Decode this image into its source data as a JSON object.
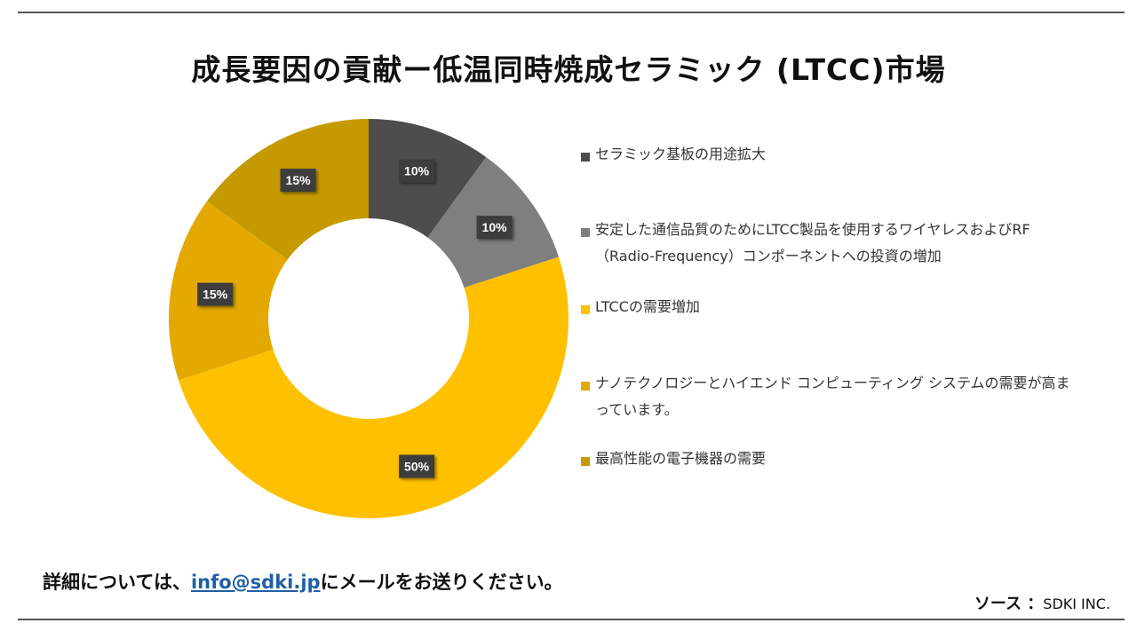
{
  "title": "成長要因の貢献ー低温同時焼成セラミック (LTCC)市場",
  "chart_data": {
    "type": "pie",
    "variant": "donut",
    "title": "成長要因の貢献ー低温同時焼成セラミック (LTCC)市場",
    "categories": [
      "セラミック基板の用途拡大",
      "安定した通信品質のためにLTCC製品を使用するワイヤレスおよびRF（Radio-Frequency）コンポーネントへの投資の増加",
      "LTCCの需要増加",
      "ナノテクノロジーとハイエンド コンピューティング システムの需要が高まっています。",
      "最高性能の電子機器の需要"
    ],
    "values": [
      10,
      10,
      50,
      15,
      15
    ],
    "labels": [
      "10%",
      "10%",
      "50%",
      "15%",
      "15%"
    ],
    "colors": [
      "#4d4d4d",
      "#7f7f7f",
      "#ffc000",
      "#e3a900",
      "#c49a00"
    ],
    "legend_position": "right"
  },
  "legend": [
    {
      "label": "セラミック基板の用途拡大",
      "color": "#4d4d4d"
    },
    {
      "label": "安定した通信品質のためにLTCC製品を使用するワイヤレスおよびRF（Radio-Frequency）コンポーネントへの投資の増加",
      "color": "#7f7f7f"
    },
    {
      "label": "LTCCの需要増加",
      "color": "#ffc000"
    },
    {
      "label": "ナノテクノロジーとハイエンド コンピューティング システムの需要が高まっています。",
      "color": "#e3a900"
    },
    {
      "label": "最高性能の電子機器の需要",
      "color": "#c49a00"
    }
  ],
  "contact": {
    "prefix": "詳細については、",
    "email": "info@sdki.jp",
    "suffix": "にメールをお送りください。"
  },
  "source": {
    "label": "ソース ：",
    "value": "SDKI INC."
  }
}
